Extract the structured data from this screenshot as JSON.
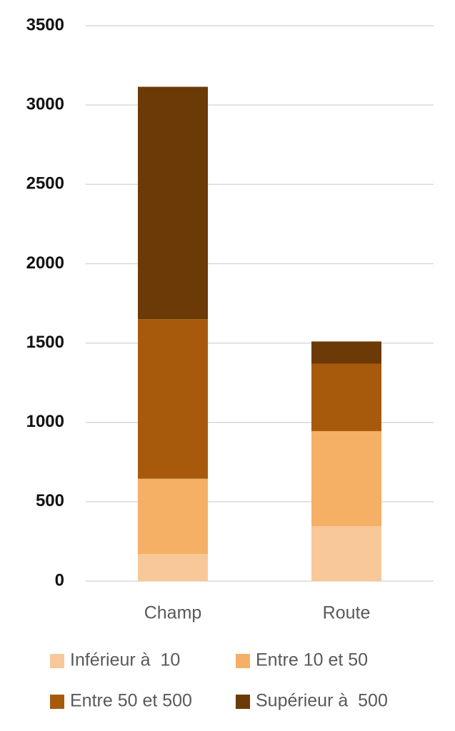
{
  "chart_data": {
    "type": "stacked-bar",
    "categories": [
      "Champ",
      "Route"
    ],
    "series": [
      {
        "name": "Inférieur à  10",
        "color": "#f8c899",
        "values": [
          170,
          345
        ]
      },
      {
        "name": "Entre 10 et 50",
        "color": "#f5b066",
        "values": [
          475,
          600
        ]
      },
      {
        "name": "Entre 50 et 500",
        "color": "#a85a0c",
        "values": [
          1005,
          425
        ]
      },
      {
        "name": "Supérieur à  500",
        "color": "#6b3a06",
        "values": [
          1465,
          140
        ]
      }
    ],
    "ylim": [
      0,
      3500
    ],
    "yticks": [
      0,
      500,
      1000,
      1500,
      2000,
      2500,
      3000,
      3500
    ],
    "grid": true
  }
}
